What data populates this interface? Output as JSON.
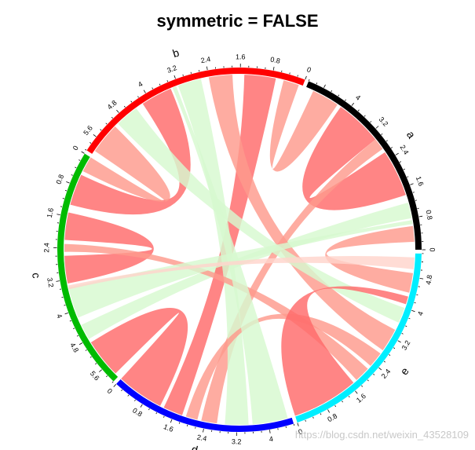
{
  "title": "symmetric = FALSE",
  "watermark": "https://blog.csdn.net/weixin_43528109",
  "chart_data": {
    "type": "chord",
    "sectors": [
      {
        "name": "a",
        "total": 5.2,
        "color": "#000000",
        "ticks": [
          "0",
          "0.8",
          "1.6",
          "2.4",
          "3.2",
          "4"
        ]
      },
      {
        "name": "b",
        "total": 6.0,
        "color": "#ff0000",
        "ticks": [
          "0",
          "0.8",
          "1.6",
          "2.4",
          "3.2",
          "4",
          "4.8",
          "5.6"
        ]
      },
      {
        "name": "c",
        "total": 6.0,
        "color": "#00bb00",
        "ticks": [
          "0",
          "0.8",
          "1.6",
          "2.4",
          "3.2",
          "4",
          "4.8",
          "5.6"
        ]
      },
      {
        "name": "d",
        "total": 4.6,
        "color": "#0000ff",
        "ticks": [
          "0",
          "0.8",
          "1.6",
          "2.4",
          "3.2",
          "4"
        ]
      },
      {
        "name": "e",
        "total": 5.4,
        "color": "#00eeff",
        "ticks": [
          "0",
          "0.8",
          "1.6",
          "2.4",
          "3.2",
          "4",
          "4.8"
        ]
      }
    ],
    "links": [
      {
        "from": "a",
        "from_range": [
          0.2,
          0.6
        ],
        "to": "e",
        "to_range": [
          4.4,
          4.9
        ],
        "color": "#fe9a8c"
      },
      {
        "from": "a",
        "from_range": [
          0.8,
          1.2
        ],
        "to": "c",
        "to_range": [
          4.4,
          4.8
        ],
        "color": "#d7f9d0"
      },
      {
        "from": "a",
        "from_range": [
          1.4,
          2.6
        ],
        "to": "a",
        "to_range": [
          3.0,
          4.2
        ],
        "color": "#ff6a6a"
      },
      {
        "from": "a",
        "from_range": [
          2.7,
          3.0
        ],
        "to": "d",
        "to_range": [
          2.3,
          2.7
        ],
        "color": "#fe9a8c"
      },
      {
        "from": "a",
        "from_range": [
          4.3,
          5.0
        ],
        "to": "b",
        "to_range": [
          0.1,
          0.5
        ],
        "color": "#fe9a8c"
      },
      {
        "from": "b",
        "from_range": [
          0.7,
          1.5
        ],
        "to": "d",
        "to_range": [
          1.3,
          1.8
        ],
        "color": "#ff6a6a"
      },
      {
        "from": "b",
        "from_range": [
          1.8,
          2.4
        ],
        "to": "e",
        "to_range": [
          2.8,
          3.4
        ],
        "color": "#fe9a8c"
      },
      {
        "from": "b",
        "from_range": [
          2.6,
          3.2
        ],
        "to": "d",
        "to_range": [
          2.9,
          3.5
        ],
        "color": "#d7f9d0"
      },
      {
        "from": "b",
        "from_range": [
          3.4,
          4.2
        ],
        "to": "c",
        "to_range": [
          0.5,
          1.3
        ],
        "color": "#ff6a6a"
      },
      {
        "from": "b",
        "from_range": [
          4.4,
          5.0
        ],
        "to": "e",
        "to_range": [
          3.6,
          4.0
        ],
        "color": "#d7f9d0"
      },
      {
        "from": "b",
        "from_range": [
          5.1,
          5.9
        ],
        "to": "c",
        "to_range": [
          0.0,
          0.4
        ],
        "color": "#fe9a8c"
      },
      {
        "from": "c",
        "from_range": [
          1.5,
          2.2
        ],
        "to": "c",
        "to_range": [
          2.6,
          3.3
        ],
        "color": "#ff6a6a"
      },
      {
        "from": "c",
        "from_range": [
          2.3,
          2.5
        ],
        "to": "e",
        "to_range": [
          1.8,
          2.2
        ],
        "color": "#fe9a8c"
      },
      {
        "from": "c",
        "from_range": [
          3.4,
          4.2
        ],
        "to": "a",
        "to_range": [
          0.65,
          0.75
        ],
        "color": "#d7f9d0"
      },
      {
        "from": "c",
        "from_range": [
          4.9,
          5.9
        ],
        "to": "d",
        "to_range": [
          0.0,
          1.2
        ],
        "color": "#ff6a6a"
      },
      {
        "from": "d",
        "from_range": [
          1.9,
          2.2
        ],
        "to": "e",
        "to_range": [
          2.3,
          2.7
        ],
        "color": "#fe9a8c"
      },
      {
        "from": "d",
        "from_range": [
          3.6,
          4.5
        ],
        "to": "b",
        "to_range": [
          3.25,
          3.35
        ],
        "color": "#d7f9d0"
      },
      {
        "from": "e",
        "from_range": [
          0.0,
          1.7
        ],
        "to": "e",
        "to_range": [
          4.1,
          4.3
        ],
        "color": "#ff6a6a"
      },
      {
        "from": "e",
        "from_range": [
          5.0,
          5.3
        ],
        "to": "c",
        "to_range": [
          3.35,
          3.45
        ],
        "color": "#ffd4cc"
      }
    ]
  }
}
